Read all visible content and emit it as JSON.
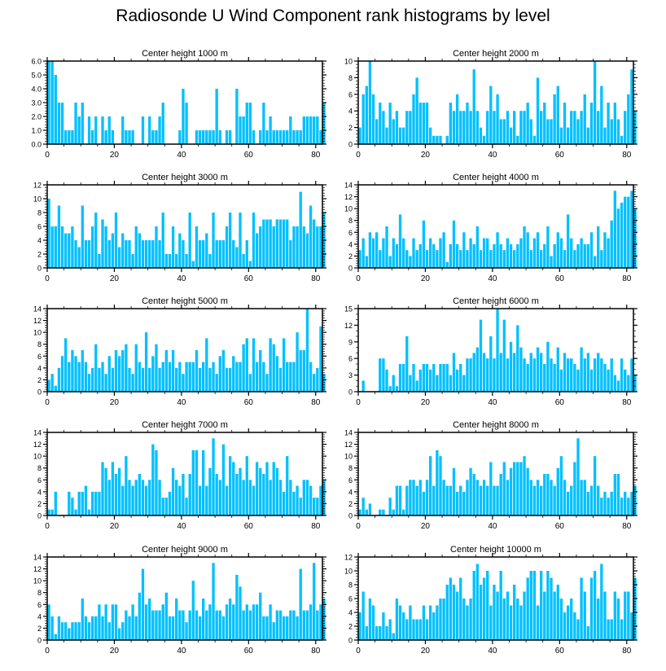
{
  "title": "Radiosonde U Wind Component rank histograms by level",
  "bar_color": "#00c0ff",
  "xlim": [
    0,
    82
  ],
  "x_ticks": [
    0,
    20,
    40,
    60,
    80
  ],
  "chart_data": [
    {
      "type": "bar",
      "title": "Center height 1000 m",
      "ylim": [
        0,
        6
      ],
      "y_ticks": [
        0,
        1,
        2,
        3,
        4,
        5,
        6
      ],
      "y_tick_labels": [
        "0.0",
        "1.0",
        "2.0",
        "3.0",
        "4.0",
        "5.0",
        "6.0"
      ],
      "values": [
        6,
        6,
        5,
        3,
        3,
        1,
        1,
        1,
        3,
        2,
        3,
        0,
        2,
        1,
        2,
        0,
        2,
        1,
        2,
        1,
        0,
        0,
        2,
        1,
        1,
        1,
        0,
        0,
        2,
        0,
        2,
        1,
        1,
        2,
        3,
        0,
        0,
        0,
        0,
        1,
        4,
        3,
        0,
        0,
        1,
        1,
        1,
        1,
        1,
        1,
        4,
        1,
        0,
        1,
        1,
        0,
        4,
        2,
        2,
        3,
        3,
        1,
        0,
        1,
        3,
        1,
        2,
        1,
        1,
        1,
        1,
        1,
        2,
        1,
        1,
        1,
        2,
        2,
        2,
        2,
        2,
        1,
        3
      ]
    },
    {
      "type": "bar",
      "title": "Center height 2000 m",
      "ylim": [
        0,
        10
      ],
      "y_ticks": [
        0,
        2,
        4,
        6,
        8,
        10
      ],
      "y_tick_labels": [
        "0",
        "2",
        "4",
        "6",
        "8",
        "10"
      ],
      "values": [
        2,
        6,
        7,
        10,
        6,
        3,
        5,
        4,
        2,
        5,
        3,
        4,
        2,
        2,
        4,
        4,
        6,
        8,
        5,
        5,
        5,
        2,
        1,
        1,
        1,
        0,
        1,
        5,
        4,
        6,
        4,
        4,
        5,
        4,
        9,
        4,
        2,
        1,
        4,
        7,
        4,
        6,
        3,
        3,
        4,
        2,
        4,
        1,
        4,
        4,
        5,
        3,
        1,
        8,
        4,
        5,
        3,
        3,
        6,
        7,
        2,
        5,
        2,
        4,
        4,
        3,
        4,
        6,
        2,
        5,
        10,
        4,
        7,
        2,
        5,
        3,
        5,
        3,
        1,
        4,
        6,
        9,
        4
      ]
    },
    {
      "type": "bar",
      "title": "Center height 3000 m",
      "ylim": [
        0,
        12
      ],
      "y_ticks": [
        0,
        2,
        4,
        6,
        8,
        10,
        12
      ],
      "y_tick_labels": [
        "0",
        "2",
        "4",
        "6",
        "8",
        "10",
        "12"
      ],
      "values": [
        10,
        6,
        6,
        9,
        6,
        5,
        5,
        6,
        4,
        3,
        9,
        4,
        4,
        6,
        8,
        2,
        7,
        6,
        4,
        5,
        8,
        3,
        5,
        4,
        4,
        2,
        6,
        5,
        4,
        4,
        4,
        4,
        6,
        4,
        8,
        2,
        2,
        6,
        2,
        5,
        4,
        2,
        8,
        1,
        6,
        4,
        4,
        5,
        2,
        8,
        4,
        4,
        4,
        6,
        8,
        4,
        3,
        8,
        2,
        4,
        1,
        8,
        5,
        6,
        7,
        7,
        7,
        6,
        7,
        7,
        7,
        7,
        4,
        6,
        6,
        11,
        6,
        5,
        9,
        7,
        6,
        6,
        8
      ]
    },
    {
      "type": "bar",
      "title": "Center height 4000 m",
      "ylim": [
        0,
        14
      ],
      "y_ticks": [
        0,
        2,
        4,
        6,
        8,
        10,
        12,
        14
      ],
      "y_tick_labels": [
        "0",
        "2",
        "4",
        "6",
        "8",
        "10",
        "12",
        "14"
      ],
      "values": [
        3,
        5,
        2,
        6,
        5,
        6,
        3,
        5,
        7,
        2,
        5,
        4,
        9,
        5,
        3,
        2,
        5,
        3,
        4,
        8,
        3,
        5,
        4,
        3,
        5,
        6,
        1,
        4,
        8,
        4,
        3,
        6,
        3,
        5,
        4,
        7,
        3,
        5,
        5,
        3,
        4,
        6,
        4,
        3,
        5,
        4,
        3,
        4,
        5,
        7,
        6,
        3,
        5,
        6,
        3,
        4,
        7,
        2,
        4,
        6,
        5,
        3,
        9,
        5,
        3,
        4,
        5,
        4,
        4,
        6,
        2,
        7,
        3,
        6,
        5,
        8,
        13,
        10,
        11,
        12,
        12,
        13,
        10
      ]
    },
    {
      "type": "bar",
      "title": "Center height 5000 m",
      "ylim": [
        0,
        14
      ],
      "y_ticks": [
        0,
        2,
        4,
        6,
        8,
        10,
        12,
        14
      ],
      "y_tick_labels": [
        "0",
        "2",
        "4",
        "6",
        "8",
        "10",
        "12",
        "14"
      ],
      "values": [
        2,
        3,
        1,
        4,
        6,
        9,
        5,
        7,
        6,
        5,
        7,
        5,
        3,
        4,
        8,
        4,
        5,
        3,
        6,
        4,
        7,
        6,
        7,
        8,
        4,
        3,
        8,
        5,
        4,
        10,
        4,
        6,
        8,
        4,
        5,
        7,
        5,
        7,
        4,
        5,
        3,
        5,
        5,
        5,
        7,
        4,
        5,
        9,
        4,
        5,
        3,
        6,
        7,
        4,
        4,
        6,
        5,
        5,
        8,
        9,
        3,
        9,
        5,
        7,
        5,
        3,
        9,
        8,
        6,
        4,
        9,
        5,
        5,
        5,
        10,
        7,
        7,
        14,
        5,
        3,
        4,
        11,
        3
      ]
    },
    {
      "type": "bar",
      "title": "Center height 6000 m",
      "ylim": [
        0,
        15
      ],
      "y_ticks": [
        0,
        3,
        6,
        9,
        12,
        15
      ],
      "y_tick_labels": [
        "0",
        "3",
        "6",
        "9",
        "12",
        "15"
      ],
      "values": [
        0,
        2,
        0,
        0,
        0,
        0,
        6,
        6,
        4,
        1,
        3,
        1,
        5,
        5,
        10,
        3,
        5,
        2,
        4,
        5,
        5,
        4,
        5,
        3,
        5,
        5,
        5,
        3,
        7,
        4,
        5,
        3,
        6,
        6,
        7,
        8,
        13,
        7,
        6,
        10,
        6,
        15,
        7,
        13,
        6,
        9,
        7,
        12,
        8,
        6,
        5,
        7,
        6,
        8,
        7,
        5,
        9,
        6,
        5,
        8,
        4,
        7,
        6,
        6,
        5,
        4,
        8,
        6,
        7,
        4,
        6,
        7,
        6,
        5,
        4,
        6,
        3,
        2,
        6,
        4,
        3,
        6,
        3
      ]
    },
    {
      "type": "bar",
      "title": "Center height 7000 m",
      "ylim": [
        0,
        14
      ],
      "y_ticks": [
        0,
        2,
        4,
        6,
        8,
        10,
        12,
        14
      ],
      "y_tick_labels": [
        "0",
        "2",
        "4",
        "6",
        "8",
        "10",
        "12",
        "14"
      ],
      "values": [
        1,
        1,
        4,
        0,
        0,
        0,
        4,
        3,
        1,
        4,
        4,
        5,
        1,
        4,
        4,
        4,
        9,
        8,
        6,
        9,
        7,
        8,
        5,
        10,
        6,
        5,
        6,
        7,
        6,
        5,
        6,
        12,
        11,
        6,
        3,
        3,
        4,
        8,
        6,
        5,
        7,
        3,
        7,
        11,
        11,
        5,
        11,
        5,
        8,
        13,
        7,
        6,
        12,
        5,
        10,
        9,
        7,
        8,
        6,
        10,
        6,
        5,
        9,
        8,
        7,
        9,
        6,
        9,
        8,
        6,
        4,
        10,
        6,
        4,
        5,
        3,
        6,
        6,
        5,
        3,
        3,
        5,
        6
      ]
    },
    {
      "type": "bar",
      "title": "Center height 8000 m",
      "ylim": [
        0,
        14
      ],
      "y_ticks": [
        0,
        2,
        4,
        6,
        8,
        10,
        12,
        14
      ],
      "y_tick_labels": [
        "0",
        "2",
        "4",
        "6",
        "8",
        "10",
        "12",
        "14"
      ],
      "values": [
        1,
        3,
        1,
        2,
        0,
        0,
        1,
        1,
        0,
        3,
        1,
        5,
        5,
        1,
        5,
        6,
        6,
        5,
        6,
        4,
        6,
        10,
        5,
        11,
        10,
        6,
        5,
        5,
        8,
        4,
        5,
        4,
        6,
        8,
        7,
        6,
        5,
        6,
        5,
        9,
        5,
        5,
        7,
        9,
        6,
        8,
        9,
        9,
        9,
        10,
        8,
        6,
        5,
        6,
        5,
        7,
        7,
        6,
        5,
        8,
        10,
        6,
        4,
        5,
        9,
        13,
        6,
        6,
        4,
        5,
        10,
        5,
        3,
        4,
        3,
        4,
        7,
        7,
        3,
        4,
        3,
        4,
        5
      ]
    },
    {
      "type": "bar",
      "title": "Center height 9000 m",
      "ylim": [
        0,
        14
      ],
      "y_ticks": [
        0,
        2,
        4,
        6,
        8,
        10,
        12,
        14
      ],
      "y_tick_labels": [
        "0",
        "2",
        "4",
        "6",
        "8",
        "10",
        "12",
        "14"
      ],
      "values": [
        6,
        4,
        1,
        4,
        3,
        3,
        2,
        3,
        3,
        3,
        7,
        4,
        3,
        4,
        4,
        6,
        4,
        6,
        3,
        6,
        6,
        2,
        3,
        5,
        4,
        6,
        4,
        8,
        12,
        6,
        7,
        5,
        5,
        5,
        6,
        8,
        4,
        4,
        7,
        5,
        5,
        3,
        5,
        10,
        5,
        4,
        7,
        5,
        6,
        13,
        5,
        5,
        4,
        6,
        7,
        6,
        11,
        9,
        5,
        6,
        5,
        6,
        6,
        8,
        4,
        4,
        6,
        3,
        5,
        5,
        4,
        4,
        5,
        5,
        4,
        12,
        5,
        5,
        6,
        13,
        5,
        6,
        7
      ]
    },
    {
      "type": "bar",
      "title": "Center height 10000 m",
      "ylim": [
        0,
        12
      ],
      "y_ticks": [
        0,
        2,
        4,
        6,
        8,
        10,
        12
      ],
      "y_tick_labels": [
        "0",
        "2",
        "4",
        "6",
        "8",
        "10",
        "12"
      ],
      "values": [
        4,
        7,
        2,
        6,
        5,
        2,
        2,
        4,
        2,
        3,
        1,
        6,
        5,
        4,
        3,
        5,
        3,
        3,
        3,
        5,
        3,
        5,
        4,
        5,
        6,
        6,
        8,
        9,
        8,
        7,
        9,
        6,
        5,
        6,
        10,
        11,
        8,
        9,
        10,
        5,
        8,
        7,
        10,
        6,
        7,
        5,
        8,
        6,
        5,
        7,
        9,
        10,
        10,
        5,
        10,
        7,
        10,
        9,
        7,
        8,
        6,
        4,
        5,
        6,
        4,
        3,
        9,
        7,
        2,
        9,
        10,
        6,
        11,
        7,
        3,
        3,
        7,
        6,
        3,
        7,
        7,
        4,
        9
      ]
    }
  ]
}
